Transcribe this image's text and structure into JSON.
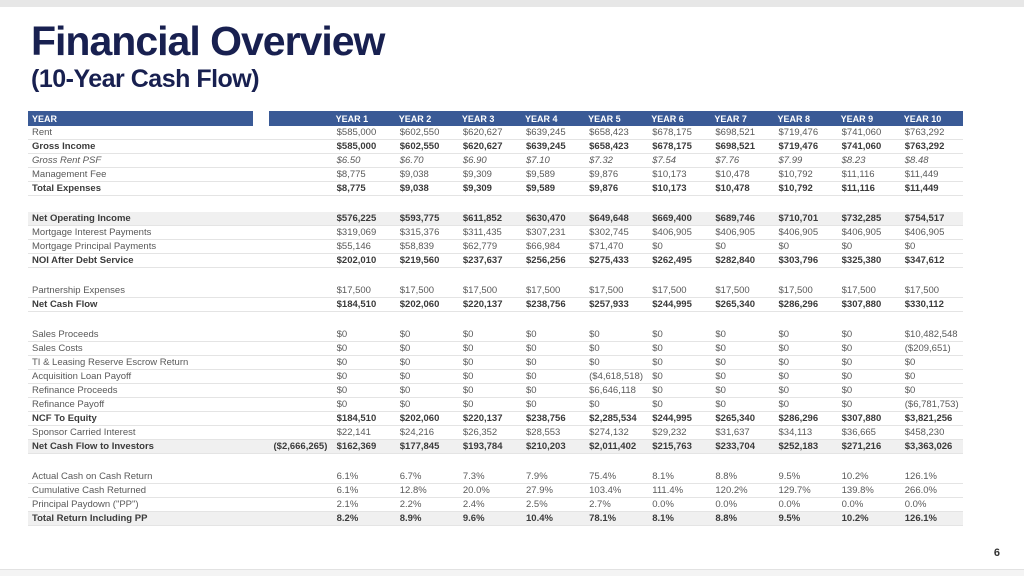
{
  "slide": {
    "title": "Financial Overview",
    "subtitle": "(10-Year Cash Flow)",
    "page_number": "6"
  },
  "colors": {
    "header_bg": "#3a5a96",
    "title_text": "#182050",
    "shaded_row": "#f0f0f0",
    "body_text": "#595959"
  },
  "table": {
    "header": [
      "YEAR",
      "",
      "YEAR 1",
      "YEAR 2",
      "YEAR 3",
      "YEAR 4",
      "YEAR 5",
      "YEAR 6",
      "YEAR 7",
      "YEAR 8",
      "YEAR 9",
      "YEAR 10"
    ],
    "rows": [
      {
        "label": "Rent",
        "style": "normal",
        "year0": "",
        "values": [
          "$585,000",
          "$602,550",
          "$620,627",
          "$639,245",
          "$658,423",
          "$678,175",
          "$698,521",
          "$719,476",
          "$741,060",
          "$763,292"
        ]
      },
      {
        "label": "Gross Income",
        "style": "bold",
        "year0": "",
        "values": [
          "$585,000",
          "$602,550",
          "$620,627",
          "$639,245",
          "$658,423",
          "$678,175",
          "$698,521",
          "$719,476",
          "$741,060",
          "$763,292"
        ]
      },
      {
        "label": "Gross Rent PSF",
        "style": "italic",
        "year0": "",
        "values": [
          "$6.50",
          "$6.70",
          "$6.90",
          "$7.10",
          "$7.32",
          "$7.54",
          "$7.76",
          "$7.99",
          "$8.23",
          "$8.48"
        ]
      },
      {
        "label": "Management Fee",
        "style": "normal",
        "year0": "",
        "values": [
          "$8,775",
          "$9,038",
          "$9,309",
          "$9,589",
          "$9,876",
          "$10,173",
          "$10,478",
          "$10,792",
          "$11,116",
          "$11,449"
        ]
      },
      {
        "label": "Total Expenses",
        "style": "bold",
        "year0": "",
        "values": [
          "$8,775",
          "$9,038",
          "$9,309",
          "$9,589",
          "$9,876",
          "$10,173",
          "$10,478",
          "$10,792",
          "$11,116",
          "$11,449"
        ]
      },
      {
        "label": "",
        "style": "spacer",
        "year0": "",
        "values": []
      },
      {
        "label": "Net Operating Income",
        "style": "bold shaded",
        "year0": "",
        "values": [
          "$576,225",
          "$593,775",
          "$611,852",
          "$630,470",
          "$649,648",
          "$669,400",
          "$689,746",
          "$710,701",
          "$732,285",
          "$754,517"
        ]
      },
      {
        "label": "Mortgage Interest Payments",
        "style": "normal",
        "year0": "",
        "values": [
          "$319,069",
          "$315,376",
          "$311,435",
          "$307,231",
          "$302,745",
          "$406,905",
          "$406,905",
          "$406,905",
          "$406,905",
          "$406,905"
        ]
      },
      {
        "label": "Mortgage Principal Payments",
        "style": "normal",
        "year0": "",
        "values": [
          "$55,146",
          "$58,839",
          "$62,779",
          "$66,984",
          "$71,470",
          "$0",
          "$0",
          "$0",
          "$0",
          "$0"
        ]
      },
      {
        "label": "NOI After Debt Service",
        "style": "bold",
        "year0": "",
        "values": [
          "$202,010",
          "$219,560",
          "$237,637",
          "$256,256",
          "$275,433",
          "$262,495",
          "$282,840",
          "$303,796",
          "$325,380",
          "$347,612"
        ]
      },
      {
        "label": "",
        "style": "spacer",
        "year0": "",
        "values": []
      },
      {
        "label": "Partnership Expenses",
        "style": "normal",
        "year0": "",
        "values": [
          "$17,500",
          "$17,500",
          "$17,500",
          "$17,500",
          "$17,500",
          "$17,500",
          "$17,500",
          "$17,500",
          "$17,500",
          "$17,500"
        ]
      },
      {
        "label": "Net Cash Flow",
        "style": "bold",
        "year0": "",
        "values": [
          "$184,510",
          "$202,060",
          "$220,137",
          "$238,756",
          "$257,933",
          "$244,995",
          "$265,340",
          "$286,296",
          "$307,880",
          "$330,112"
        ]
      },
      {
        "label": "",
        "style": "spacer",
        "year0": "",
        "values": []
      },
      {
        "label": "Sales Proceeds",
        "style": "normal",
        "year0": "",
        "values": [
          "$0",
          "$0",
          "$0",
          "$0",
          "$0",
          "$0",
          "$0",
          "$0",
          "$0",
          "$10,482,548"
        ]
      },
      {
        "label": "Sales Costs",
        "style": "normal",
        "year0": "",
        "values": [
          "$0",
          "$0",
          "$0",
          "$0",
          "$0",
          "$0",
          "$0",
          "$0",
          "$0",
          "($209,651)"
        ]
      },
      {
        "label": "TI & Leasing Reserve Escrow Return",
        "style": "normal",
        "year0": "",
        "values": [
          "$0",
          "$0",
          "$0",
          "$0",
          "$0",
          "$0",
          "$0",
          "$0",
          "$0",
          "$0"
        ]
      },
      {
        "label": "Acquisition Loan Payoff",
        "style": "normal",
        "year0": "",
        "values": [
          "$0",
          "$0",
          "$0",
          "$0",
          "($4,618,518)",
          "$0",
          "$0",
          "$0",
          "$0",
          "$0"
        ]
      },
      {
        "label": "Refinance Proceeds",
        "style": "normal",
        "year0": "",
        "values": [
          "$0",
          "$0",
          "$0",
          "$0",
          "$6,646,118",
          "$0",
          "$0",
          "$0",
          "$0",
          "$0"
        ]
      },
      {
        "label": "Refinance Payoff",
        "style": "normal",
        "year0": "",
        "values": [
          "$0",
          "$0",
          "$0",
          "$0",
          "$0",
          "$0",
          "$0",
          "$0",
          "$0",
          "($6,781,753)"
        ]
      },
      {
        "label": "NCF To Equity",
        "style": "bold",
        "year0": "",
        "values": [
          "$184,510",
          "$202,060",
          "$220,137",
          "$238,756",
          "$2,285,534",
          "$244,995",
          "$265,340",
          "$286,296",
          "$307,880",
          "$3,821,256"
        ]
      },
      {
        "label": "Sponsor Carried Interest",
        "style": "normal",
        "year0": "",
        "values": [
          "$22,141",
          "$24,216",
          "$26,352",
          "$28,553",
          "$274,132",
          "$29,232",
          "$31,637",
          "$34,113",
          "$36,665",
          "$458,230"
        ]
      },
      {
        "label": "Net Cash Flow to Investors",
        "style": "bold shaded",
        "year0": "($2,666,265)",
        "values": [
          "$162,369",
          "$177,845",
          "$193,784",
          "$210,203",
          "$2,011,402",
          "$215,763",
          "$233,704",
          "$252,183",
          "$271,216",
          "$3,363,026"
        ]
      },
      {
        "label": "",
        "style": "spacer",
        "year0": "",
        "values": []
      },
      {
        "label": "Actual Cash on Cash Return",
        "style": "normal",
        "year0": "",
        "values": [
          "6.1%",
          "6.7%",
          "7.3%",
          "7.9%",
          "75.4%",
          "8.1%",
          "8.8%",
          "9.5%",
          "10.2%",
          "126.1%"
        ]
      },
      {
        "label": "Cumulative Cash Returned",
        "style": "normal",
        "year0": "",
        "values": [
          "6.1%",
          "12.8%",
          "20.0%",
          "27.9%",
          "103.4%",
          "111.4%",
          "120.2%",
          "129.7%",
          "139.8%",
          "266.0%"
        ]
      },
      {
        "label": "Principal Paydown (\"PP\")",
        "style": "normal",
        "year0": "",
        "values": [
          "2.1%",
          "2.2%",
          "2.4%",
          "2.5%",
          "2.7%",
          "0.0%",
          "0.0%",
          "0.0%",
          "0.0%",
          "0.0%"
        ]
      },
      {
        "label": "Total Return Including PP",
        "style": "bold shaded",
        "year0": "",
        "values": [
          "8.2%",
          "8.9%",
          "9.6%",
          "10.4%",
          "78.1%",
          "8.1%",
          "8.8%",
          "9.5%",
          "10.2%",
          "126.1%"
        ]
      }
    ]
  }
}
